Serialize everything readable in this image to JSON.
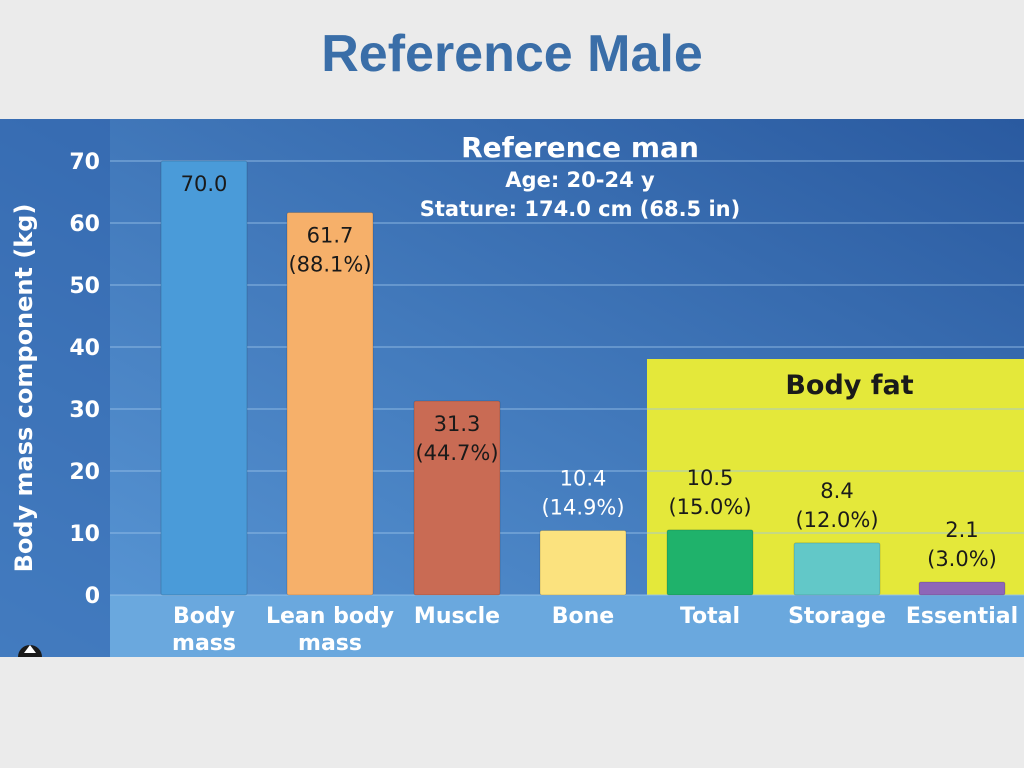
{
  "slide": {
    "title": "Reference Male"
  },
  "chart_data": {
    "type": "bar",
    "title": "Reference man",
    "subtitle_lines": [
      "Age: 20-24 y",
      "Stature: 174.0 cm (68.5 in)"
    ],
    "ylabel": "Body mass component (kg)",
    "xlabel": "",
    "ylim": [
      0,
      70
    ],
    "yticks": [
      0,
      10,
      20,
      30,
      40,
      50,
      60,
      70
    ],
    "grid": true,
    "categories": [
      "Body mass",
      "Lean body mass",
      "Muscle",
      "Bone",
      "Total",
      "Storage",
      "Essential"
    ],
    "category_lines": [
      [
        "Body",
        "mass"
      ],
      [
        "Lean body",
        "mass"
      ],
      [
        "Muscle"
      ],
      [
        "Bone"
      ],
      [
        "Total"
      ],
      [
        "Storage"
      ],
      [
        "Essential"
      ]
    ],
    "values": [
      70.0,
      61.7,
      31.3,
      10.4,
      10.5,
      8.4,
      2.1
    ],
    "labels": [
      [
        "70.0"
      ],
      [
        "61.7",
        "(88.1%)"
      ],
      [
        "31.3",
        "(44.7%)"
      ],
      [
        "10.4",
        "(14.9%)"
      ],
      [
        "10.5",
        "(15.0%)"
      ],
      [
        "8.4",
        "(12.0%)"
      ],
      [
        "2.1",
        "(3.0%)"
      ]
    ],
    "colors": [
      "#4a9bd9",
      "#f6b06a",
      "#c96b54",
      "#fbe27e",
      "#1fb26b",
      "#62c8c8",
      "#8e66b8"
    ],
    "group": {
      "label": "Body fat",
      "members": [
        "Total",
        "Storage",
        "Essential"
      ],
      "color": "#e4e83a"
    },
    "background_colors": [
      "#5b9ad8",
      "#2a5aa0"
    ]
  }
}
